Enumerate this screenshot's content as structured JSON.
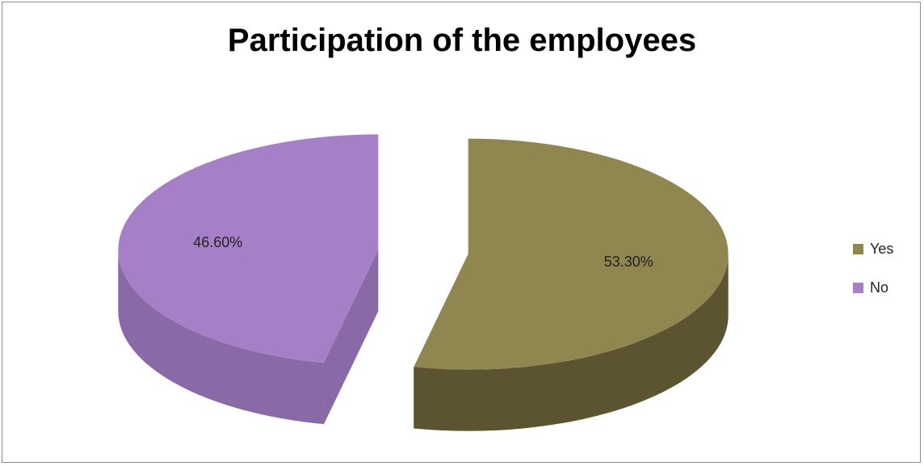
{
  "chart_data": {
    "type": "pie",
    "title": "Participation of the employees",
    "slices": [
      {
        "label": "Yes",
        "value": 53.3,
        "display": "53.30%",
        "color": "#8f8650",
        "dark": "#5c5430"
      },
      {
        "label": "No",
        "value": 46.6,
        "display": "46.60%",
        "color": "#a680c6",
        "dark": "#8a6aa6"
      }
    ],
    "style": "3d-exploded",
    "legend_position": "right"
  }
}
